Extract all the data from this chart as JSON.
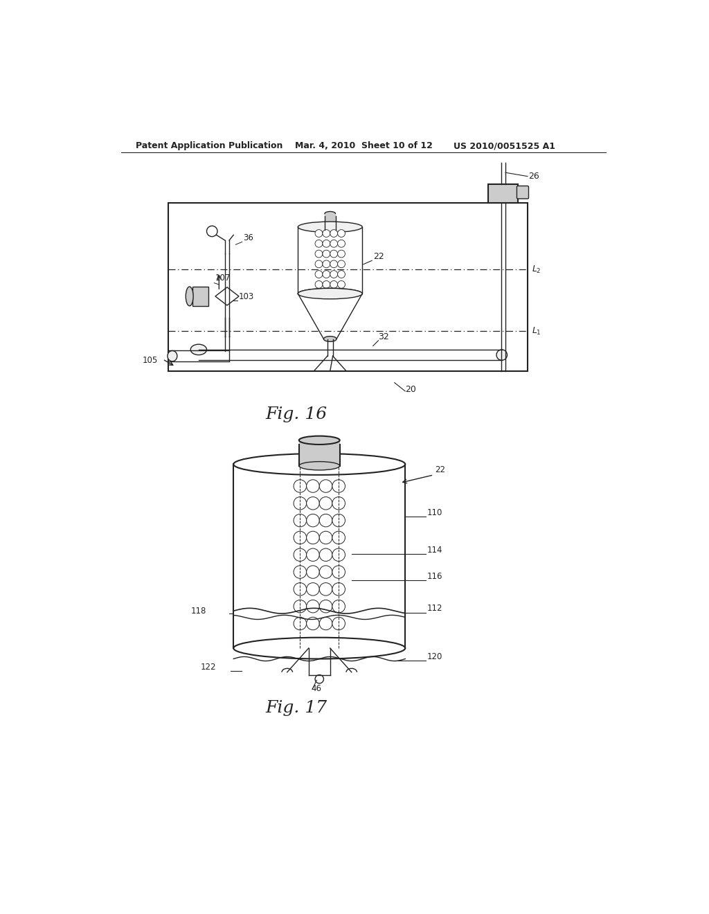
{
  "background_color": "#ffffff",
  "header_left": "Patent Application Publication",
  "header_mid": "Mar. 4, 2010  Sheet 10 of 12",
  "header_right": "US 2010/0051525 A1",
  "fig16_caption": "Fig. 16",
  "fig17_caption": "Fig. 17",
  "line_color": "#222222",
  "fill_white": "#ffffff",
  "fill_light": "#f0f0f0",
  "fill_gray": "#cccccc",
  "fill_dark": "#aaaaaa"
}
